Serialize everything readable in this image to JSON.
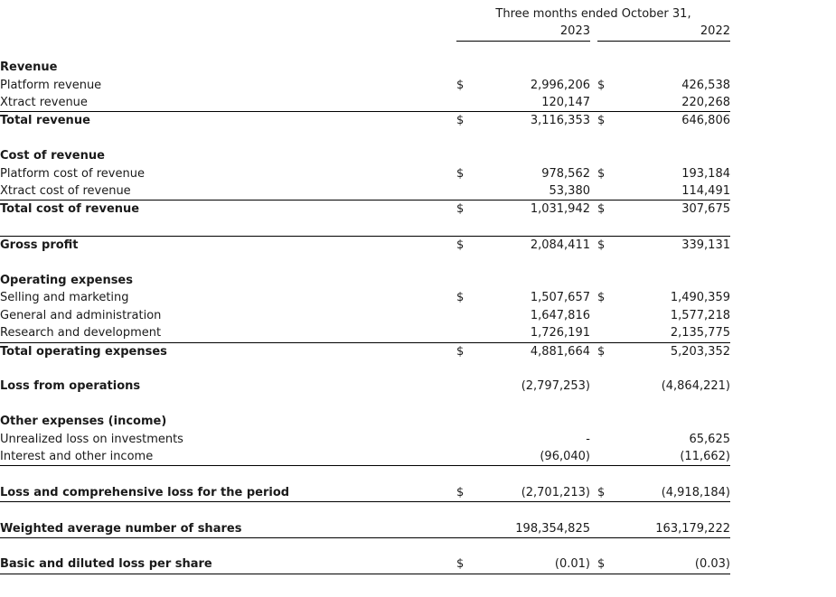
{
  "document": {
    "title": "statement-of-loss-and-comprehensive-loss",
    "header": {
      "period_label": "Three months ended October 31,",
      "years": [
        "2023",
        "2022"
      ]
    },
    "rows": [
      {
        "type": "spacer"
      },
      {
        "type": "section",
        "label": "Revenue"
      },
      {
        "type": "item",
        "label": "Platform revenue",
        "d1": "$",
        "v1": "2,996,206",
        "d2": "$",
        "v2": "426,538"
      },
      {
        "type": "item",
        "label": "Xtract revenue",
        "v1": "120,147",
        "v2": "220,268",
        "line_below": true
      },
      {
        "type": "total",
        "label": "Total revenue",
        "d1": "$",
        "v1": "3,116,353",
        "d2": "$",
        "v2": "646,806"
      },
      {
        "type": "spacer"
      },
      {
        "type": "section",
        "label": "Cost of revenue"
      },
      {
        "type": "item",
        "label": "Platform cost of revenue",
        "d1": "$",
        "v1": "978,562",
        "d2": "$",
        "v2": "193,184"
      },
      {
        "type": "item",
        "label": "Xtract cost of revenue",
        "v1": "53,380",
        "v2": "114,491",
        "line_below": true
      },
      {
        "type": "total",
        "label": "Total cost of revenue",
        "d1": "$",
        "v1": "1,031,942",
        "d2": "$",
        "v2": "307,675"
      },
      {
        "type": "spacer",
        "line_below": true
      },
      {
        "type": "total",
        "label": "Gross profit",
        "d1": "$",
        "v1": "2,084,411",
        "d2": "$",
        "v2": "339,131"
      },
      {
        "type": "spacer"
      },
      {
        "type": "section",
        "label": "Operating expenses"
      },
      {
        "type": "item",
        "label": "Selling and marketing",
        "d1": "$",
        "v1": "1,507,657",
        "d2": "$",
        "v2": "1,490,359"
      },
      {
        "type": "item",
        "label": "General and administration",
        "v1": "1,647,816",
        "v2": "1,577,218"
      },
      {
        "type": "item",
        "label": "Research and development",
        "v1": "1,726,191",
        "v2": "2,135,775",
        "line_below": true
      },
      {
        "type": "total",
        "label": "Total operating expenses",
        "d1": "$",
        "v1": "4,881,664",
        "d2": "$",
        "v2": "5,203,352"
      },
      {
        "type": "spacer"
      },
      {
        "type": "total",
        "label": "Loss from operations",
        "v1": "(2,797,253)",
        "v2": "(4,864,221)"
      },
      {
        "type": "spacer"
      },
      {
        "type": "section",
        "label": "Other expenses (income)"
      },
      {
        "type": "item",
        "label": "Unrealized loss on investments",
        "v1": "-",
        "v2": "65,625"
      },
      {
        "type": "item",
        "label": "Interest and other income",
        "v1": "(96,040)",
        "v2": "(11,662)",
        "line_below": true
      },
      {
        "type": "spacer"
      },
      {
        "type": "total",
        "label": "Loss and comprehensive loss for the period",
        "d1": "$",
        "v1": "(2,701,213)",
        "d2": "$",
        "v2": "(4,918,184)",
        "line_below": true
      },
      {
        "type": "spacer"
      },
      {
        "type": "total",
        "label": "Weighted average number of shares",
        "v1": "198,354,825",
        "v2": "163,179,222",
        "line_below": true
      },
      {
        "type": "spacer"
      },
      {
        "type": "total",
        "label": "Basic and diluted loss per share",
        "d1": "$",
        "v1": "(0.01)",
        "d2": "$",
        "v2": "(0.03)",
        "line_below": true
      }
    ]
  },
  "colors": {
    "text": "#1a1a1a",
    "rule": "#000000",
    "background": "#ffffff"
  }
}
